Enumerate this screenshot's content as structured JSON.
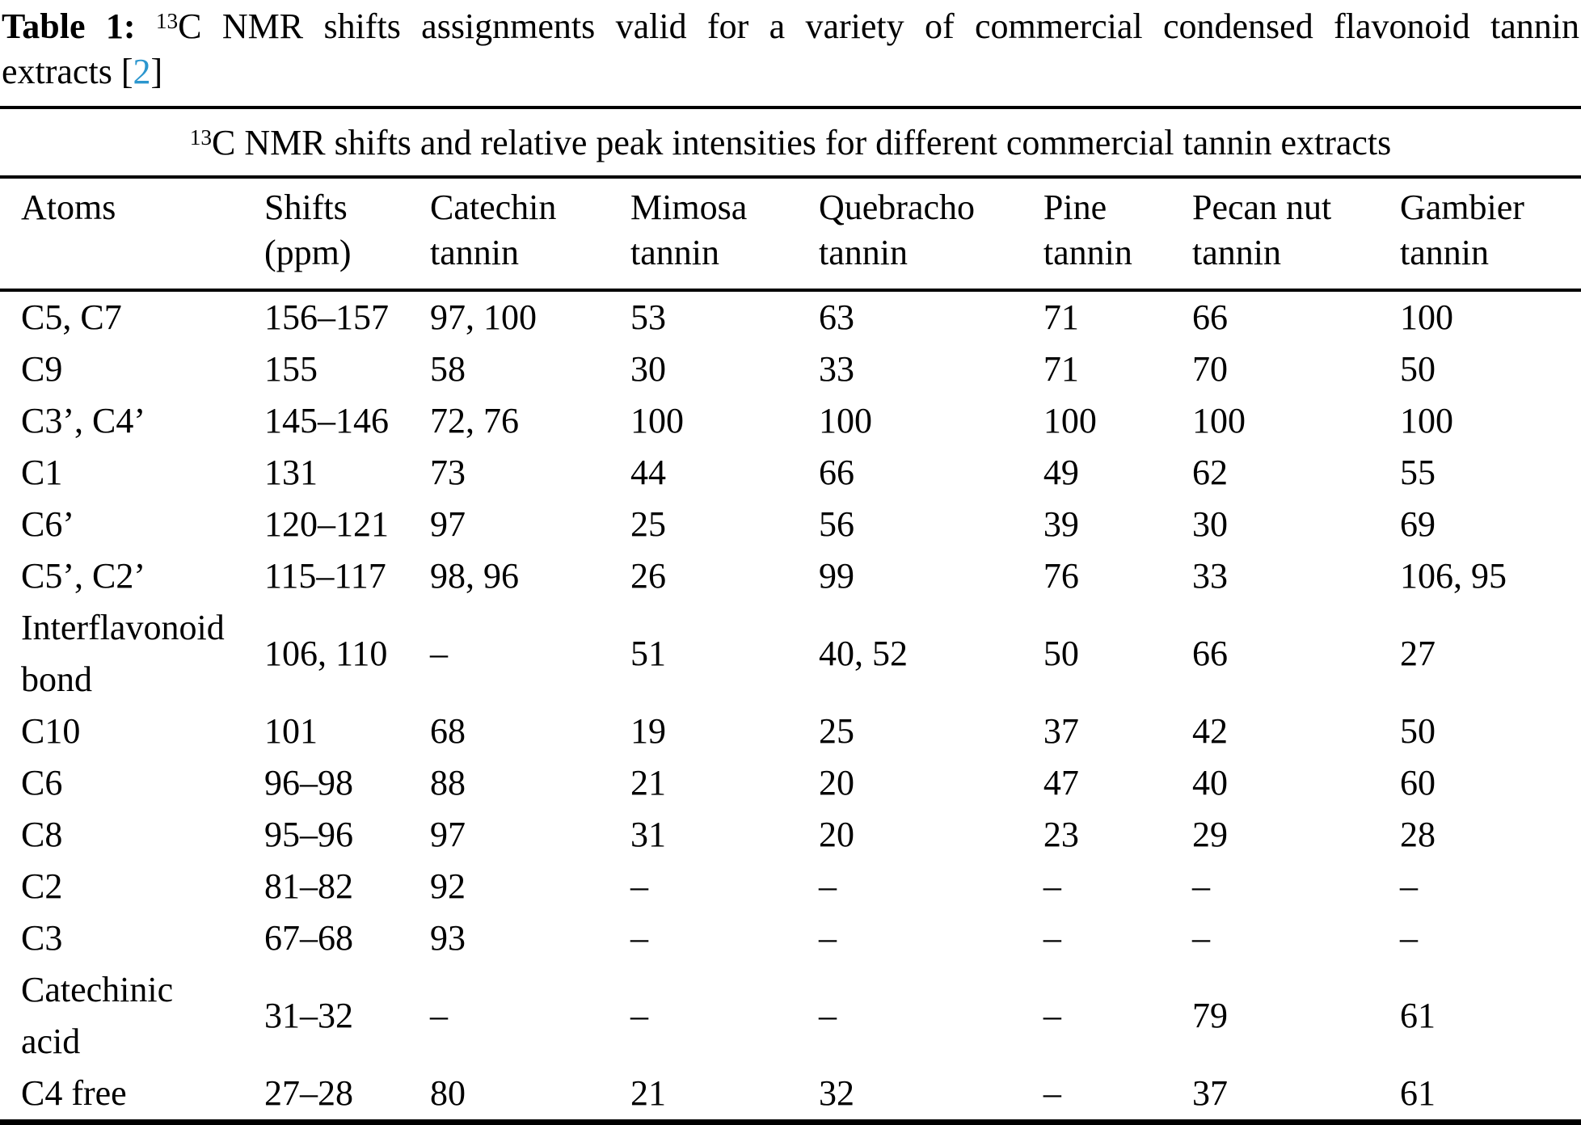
{
  "caption": {
    "label": "Table 1:",
    "sup": "13",
    "line1_rest": "C NMR shifts assignments valid for a variety of commercial condensed flavonoid tannin",
    "line2": "extracts",
    "ref_open": "[",
    "ref_text": "2",
    "ref_close": "]"
  },
  "table": {
    "subtitle": {
      "sup": "13",
      "text": "C NMR shifts and relative peak intensities for different commercial tannin extracts"
    },
    "columns": [
      {
        "lines": [
          "Atoms"
        ]
      },
      {
        "lines": [
          "Shifts",
          "(ppm)"
        ]
      },
      {
        "lines": [
          "Catechin",
          "tannin"
        ]
      },
      {
        "lines": [
          "Mimosa",
          "tannin"
        ]
      },
      {
        "lines": [
          "Quebracho",
          "tannin"
        ]
      },
      {
        "lines": [
          "Pine",
          "tannin"
        ]
      },
      {
        "lines": [
          "Pecan nut",
          "tannin"
        ]
      },
      {
        "lines": [
          "Gambier",
          "tannin"
        ]
      }
    ],
    "rows": [
      [
        "C5, C7",
        "156–157",
        "97, 100",
        "53",
        "63",
        "71",
        "66",
        "100"
      ],
      [
        "C9",
        "155",
        "58",
        "30",
        "33",
        "71",
        "70",
        "50"
      ],
      [
        "C3’, C4’",
        "145–146",
        "72, 76",
        "100",
        "100",
        "100",
        "100",
        "100"
      ],
      [
        "C1",
        "131",
        "73",
        "44",
        "66",
        "49",
        "62",
        "55"
      ],
      [
        "C6’",
        "120–121",
        "97",
        "25",
        "56",
        "39",
        "30",
        "69"
      ],
      [
        "C5’, C2’",
        "115–117",
        "98, 96",
        "26",
        "99",
        "76",
        "33",
        "106, 95"
      ],
      [
        "Interflavonoid\nbond",
        "106, 110",
        "–",
        "51",
        "40, 52",
        "50",
        "66",
        "27"
      ],
      [
        "C10",
        "101",
        "68",
        "19",
        "25",
        "37",
        "42",
        "50"
      ],
      [
        "C6",
        "96–98",
        "88",
        "21",
        "20",
        "47",
        "40",
        "60"
      ],
      [
        "C8",
        "95–96",
        "97",
        "31",
        "20",
        "23",
        "29",
        "28"
      ],
      [
        "C2",
        "81–82",
        "92",
        "–",
        "–",
        "–",
        "–",
        "–"
      ],
      [
        "C3",
        "67–68",
        "93",
        "–",
        "–",
        "–",
        "–",
        "–"
      ],
      [
        "Catechinic\nacid",
        "31–32",
        "–",
        "–",
        "–",
        "–",
        "79",
        "61"
      ],
      [
        "C4 free",
        "27–28",
        "80",
        "21",
        "32",
        "–",
        "37",
        "61"
      ]
    ]
  },
  "colors": {
    "link": "#2B96CE",
    "text": "#000000",
    "background": "#FFFFFF",
    "rule": "#000000"
  }
}
